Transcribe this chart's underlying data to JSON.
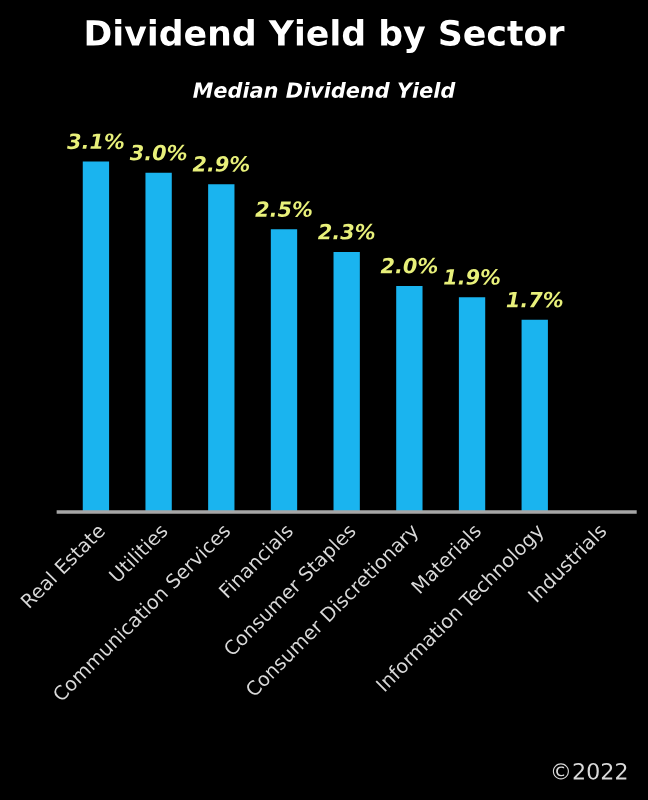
{
  "chart_data": {
    "type": "bar",
    "title": "Dividend Yield by Sector",
    "subtitle": "Median Dividend Yield",
    "categories": [
      "Real Estate",
      "Utilities",
      "Communication Services",
      "Financials",
      "Consumer Staples",
      "Consumer Discretionary",
      "Materials",
      "Information Technology",
      "Industrials"
    ],
    "values": [
      3.1,
      3.0,
      2.9,
      2.5,
      2.3,
      2.0,
      1.9,
      1.7,
      null
    ],
    "value_labels": [
      "3.1%",
      "3.0%",
      "2.9%",
      "2.5%",
      "2.3%",
      "2.0%",
      "1.9%",
      "1.7%",
      null
    ],
    "color": "#1ab4ef",
    "grid": false,
    "legend": false,
    "annotations": [
      "©2022"
    ]
  }
}
